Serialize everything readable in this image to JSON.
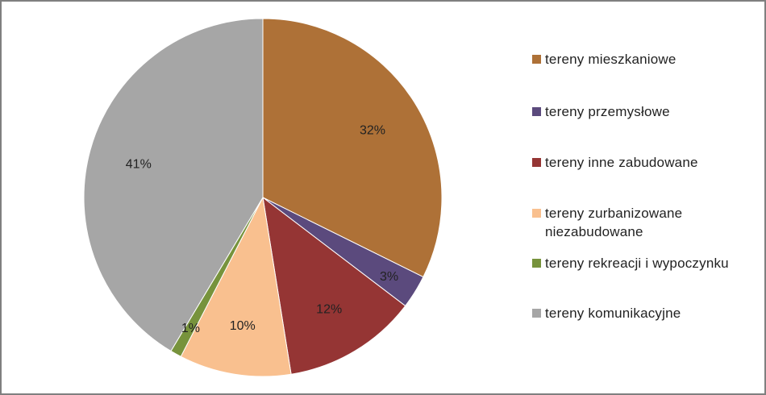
{
  "chart_data": {
    "type": "pie",
    "slices": [
      {
        "label": "tereny mieszkaniowe",
        "value": 32,
        "display": "32%",
        "color": "#ae7137"
      },
      {
        "label": "tereny przemysłowe",
        "value": 3,
        "display": "3%",
        "color": "#5b4a7d"
      },
      {
        "label": "tereny inne zabudowane",
        "value": 12,
        "display": "12%",
        "color": "#953534"
      },
      {
        "label": "tereny zurbanizowane niezabudowane",
        "value": 10,
        "display": "10%",
        "color": "#f9c08f"
      },
      {
        "label": "tereny rekreacji i wypoczynku",
        "value": 1,
        "display": "1%",
        "color": "#77933c"
      },
      {
        "label": "tereny komunikacyjne",
        "value": 41,
        "display": "41%",
        "color": "#a6a6a6"
      }
    ],
    "legend_position": "right",
    "start_angle": "top",
    "direction": "clockwise"
  }
}
